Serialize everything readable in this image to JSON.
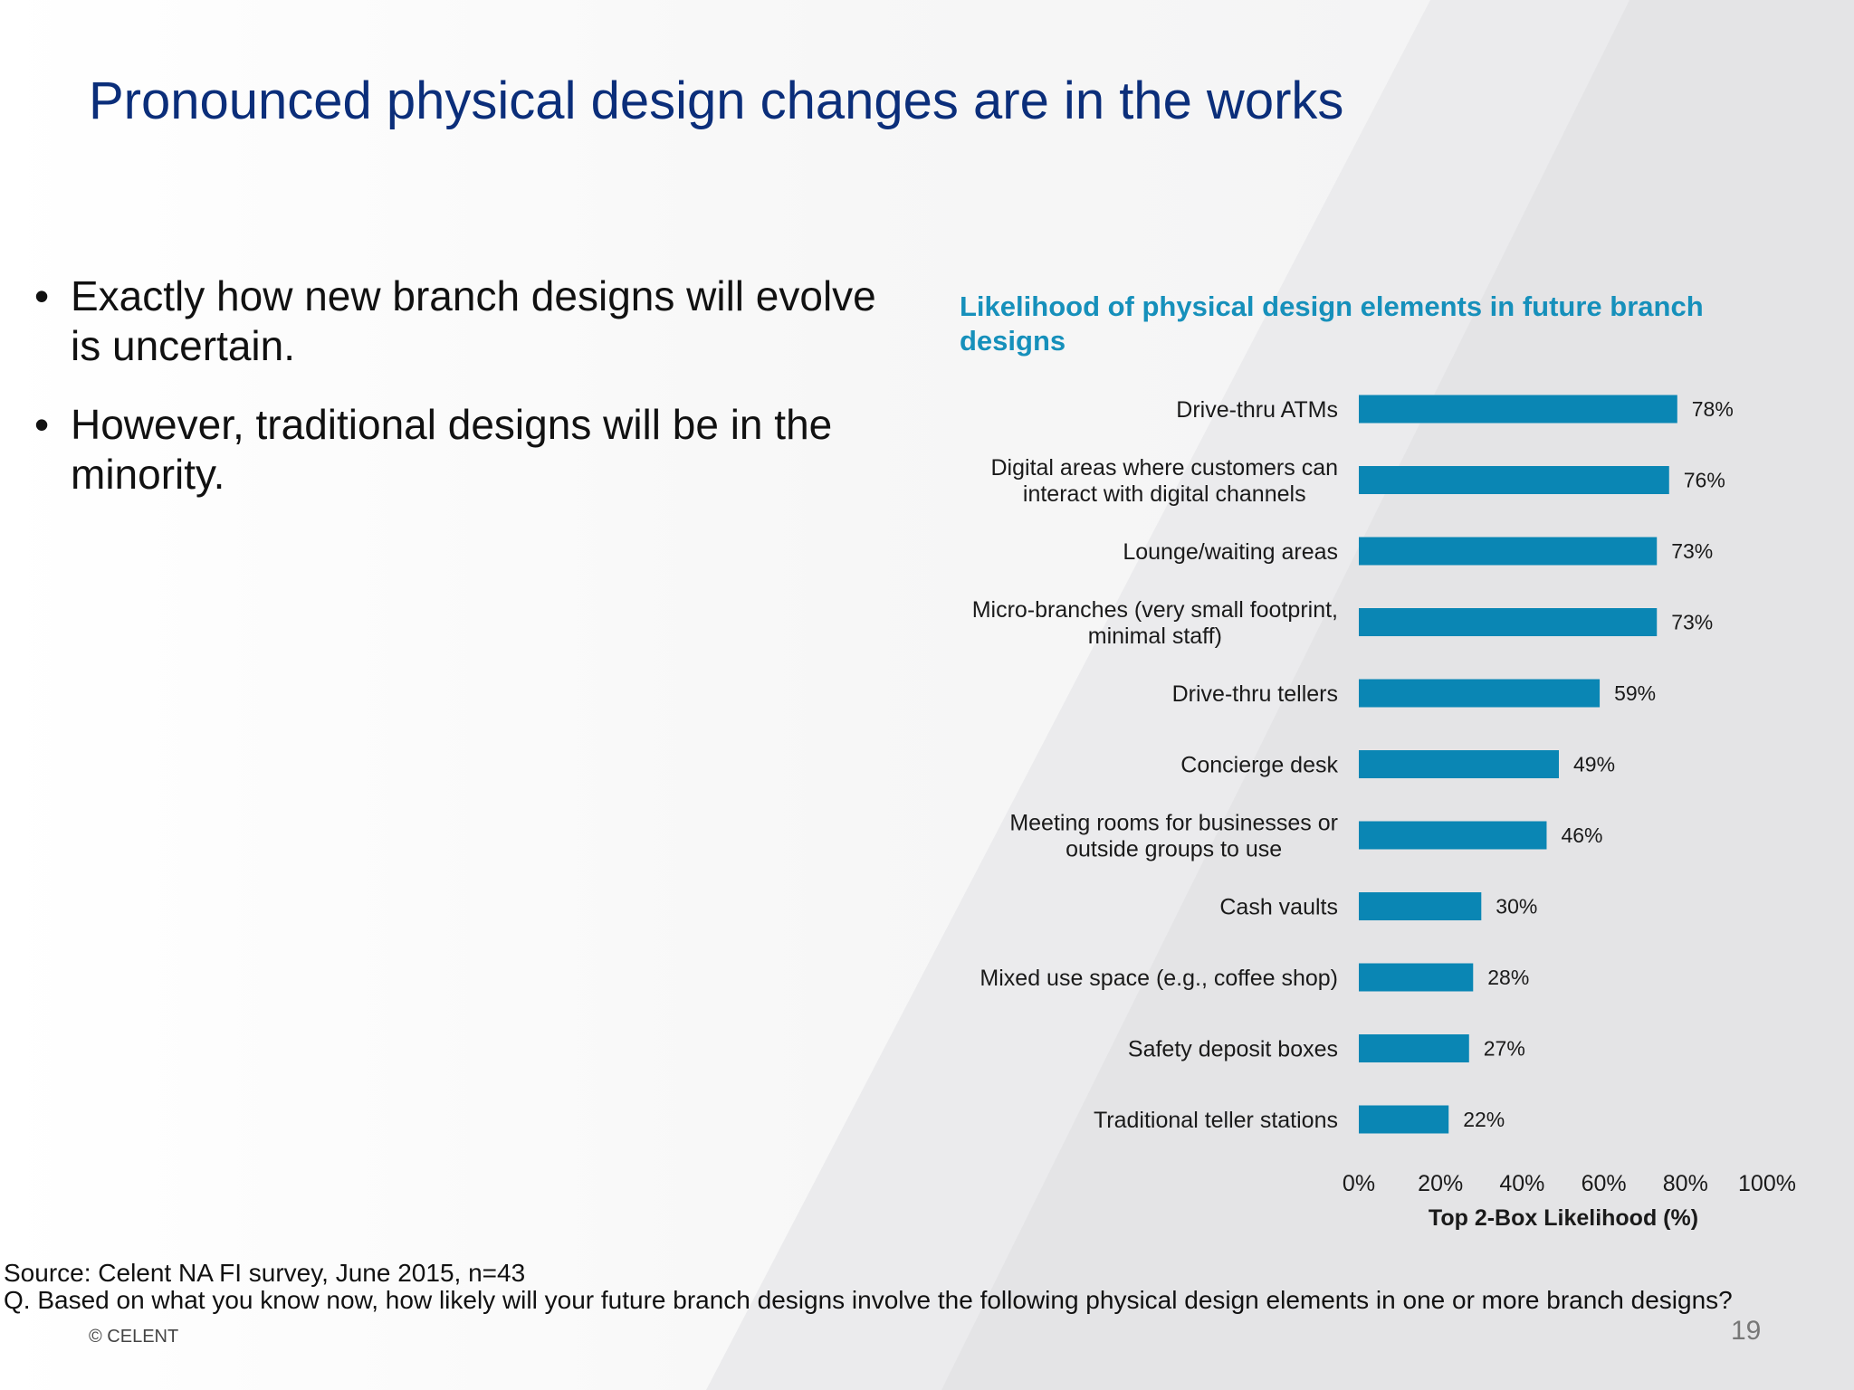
{
  "slide": {
    "title": "Pronounced physical design changes are in the works",
    "bullets": [
      "Exactly how new branch designs will evolve is uncertain.",
      "However, traditional designs will be in the minority."
    ],
    "bullet_glyph": "•",
    "source_line": "Source: Celent NA FI survey, June 2015, n=43",
    "question_line": "Q. Based on what you know now, how likely will your future branch designs involve the following physical design elements in one or more branch designs?",
    "copyright": "© CELENT",
    "page_number": "19"
  },
  "colors": {
    "title": "#0b2e7a",
    "chart_title": "#1690bb",
    "bar": "#0a86b4",
    "background_stripe": "#e6e6e8"
  },
  "chart_data": {
    "type": "bar",
    "orientation": "horizontal",
    "title": "Likelihood of physical design elements in future branch designs",
    "xlabel": "Top 2-Box Likelihood (%)",
    "ylabel": "",
    "xlim": [
      0,
      100
    ],
    "ticks": [
      "0%",
      "20%",
      "40%",
      "60%",
      "80%",
      "100%"
    ],
    "tick_values": [
      0,
      20,
      40,
      60,
      80,
      100
    ],
    "grid": false,
    "categories": [
      "Drive-thru ATMs",
      "Digital areas where customers can interact with digital channels",
      "Lounge/waiting areas",
      "Micro-branches (very small footprint, minimal staff)",
      "Drive-thru tellers",
      "Concierge desk",
      "Meeting rooms for businesses or outside groups to use",
      "Cash vaults",
      "Mixed use space (e.g., coffee shop)",
      "Safety deposit boxes",
      "Traditional teller stations"
    ],
    "category_lines": [
      [
        "Drive-thru ATMs"
      ],
      [
        "Digital areas where customers can",
        "interact with digital channels"
      ],
      [
        "Lounge/waiting areas"
      ],
      [
        "Micro-branches (very small footprint,",
        "minimal staff)"
      ],
      [
        "Drive-thru tellers"
      ],
      [
        "Concierge desk"
      ],
      [
        "Meeting rooms for businesses or",
        "outside groups to use"
      ],
      [
        "Cash vaults"
      ],
      [
        "Mixed use space (e.g., coffee shop)"
      ],
      [
        "Safety deposit boxes"
      ],
      [
        "Traditional teller stations"
      ]
    ],
    "values": [
      78,
      76,
      73,
      73,
      59,
      49,
      46,
      30,
      28,
      27,
      22
    ],
    "value_labels": [
      "78%",
      "76%",
      "73%",
      "73%",
      "59%",
      "49%",
      "46%",
      "30%",
      "28%",
      "27%",
      "22%"
    ]
  }
}
